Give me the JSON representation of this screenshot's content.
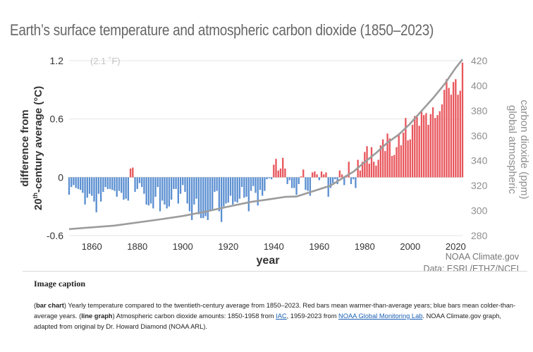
{
  "page": {
    "title": "Earth’s surface temperature and atmospheric carbon dioxide (1850–2023)",
    "caption_heading": "Image caption",
    "caption": {
      "bold": "bar chart",
      "part1": ") Yearly temperature compared to the twentieth-century average from 1850–2023. Red bars mean warmer-than-average years; blue bars mean colder-than-average years. (",
      "bold2": "line graph",
      "part2": ") Atmospheric carbon dioxide amounts: 1850-1958 from ",
      "link1": "IAC",
      "part3": ", 1959-2023 from ",
      "link2": "NOAA Global Monitoring Lab",
      "part4": ". NOAA Climate.gov graph, adapted from original by Dr. Howard Diamond (NOAA ARL)."
    }
  },
  "chart_data": {
    "type": "bar",
    "title": "Earth’s surface temperature and atmospheric carbon dioxide (1850–2023)",
    "xlabel": "year",
    "ylabel_left_line1": "difference from",
    "ylabel_left_line2a": "20",
    "ylabel_left_line2sup": "th",
    "ylabel_left_line2b": "-century average (°C)",
    "ylabel_right_line1": "global atmospheric",
    "ylabel_right_line2": "carbon dioxide (ppm)",
    "annotation": "(2.1 ˚F)",
    "credit": "NOAA Climate.gov",
    "source": "Data: ESRL/ETHZ/NCEI",
    "xlim": [
      1850,
      2023
    ],
    "ylim_left": [
      -0.6,
      1.2
    ],
    "ylim_right": [
      280,
      420
    ],
    "xticks": [
      1860,
      1880,
      1900,
      1920,
      1940,
      1960,
      1980,
      2000,
      2020
    ],
    "yticks_left": [
      {
        "v": -0.6,
        "l": "-0.6"
      },
      {
        "v": 0,
        "l": "0"
      },
      {
        "v": 0.6,
        "l": "0.6"
      },
      {
        "v": 1.2,
        "l": "1.2"
      }
    ],
    "yticks_right": [
      280,
      300,
      320,
      340,
      360,
      380,
      400,
      420
    ],
    "colors": {
      "warm": "#e8565c",
      "cold": "#5b8fd1",
      "co2": "#9c9c9c",
      "axis_text": "#333333",
      "right_text": "#8f8f8f"
    },
    "series": [
      {
        "name": "temperature anomaly (°C)",
        "x": [
          1850,
          1851,
          1852,
          1853,
          1854,
          1855,
          1856,
          1857,
          1858,
          1859,
          1860,
          1861,
          1862,
          1863,
          1864,
          1865,
          1866,
          1867,
          1868,
          1869,
          1870,
          1871,
          1872,
          1873,
          1874,
          1875,
          1876,
          1877,
          1878,
          1879,
          1880,
          1881,
          1882,
          1883,
          1884,
          1885,
          1886,
          1887,
          1888,
          1889,
          1890,
          1891,
          1892,
          1893,
          1894,
          1895,
          1896,
          1897,
          1898,
          1899,
          1900,
          1901,
          1902,
          1903,
          1904,
          1905,
          1906,
          1907,
          1908,
          1909,
          1910,
          1911,
          1912,
          1913,
          1914,
          1915,
          1916,
          1917,
          1918,
          1919,
          1920,
          1921,
          1922,
          1923,
          1924,
          1925,
          1926,
          1927,
          1928,
          1929,
          1930,
          1931,
          1932,
          1933,
          1934,
          1935,
          1936,
          1937,
          1938,
          1939,
          1940,
          1941,
          1942,
          1943,
          1944,
          1945,
          1946,
          1947,
          1948,
          1949,
          1950,
          1951,
          1952,
          1953,
          1954,
          1955,
          1956,
          1957,
          1958,
          1959,
          1960,
          1961,
          1962,
          1963,
          1964,
          1965,
          1966,
          1967,
          1968,
          1969,
          1970,
          1971,
          1972,
          1973,
          1974,
          1975,
          1976,
          1977,
          1978,
          1979,
          1980,
          1981,
          1982,
          1983,
          1984,
          1985,
          1986,
          1987,
          1988,
          1989,
          1990,
          1991,
          1992,
          1993,
          1994,
          1995,
          1996,
          1997,
          1998,
          1999,
          2000,
          2001,
          2002,
          2003,
          2004,
          2005,
          2006,
          2007,
          2008,
          2009,
          2010,
          2011,
          2012,
          2013,
          2014,
          2015,
          2016,
          2017,
          2018,
          2019,
          2020,
          2021,
          2022,
          2023
        ],
        "values": [
          -0.18,
          -0.1,
          -0.08,
          -0.11,
          -0.12,
          -0.13,
          -0.16,
          -0.28,
          -0.21,
          -0.17,
          -0.19,
          -0.25,
          -0.36,
          -0.17,
          -0.25,
          -0.15,
          -0.1,
          -0.12,
          -0.12,
          -0.13,
          -0.14,
          -0.2,
          -0.14,
          -0.16,
          -0.23,
          -0.22,
          -0.24,
          0.09,
          0.1,
          -0.15,
          -0.12,
          -0.06,
          -0.1,
          -0.17,
          -0.28,
          -0.29,
          -0.27,
          -0.32,
          -0.2,
          -0.1,
          -0.35,
          -0.24,
          -0.28,
          -0.32,
          -0.3,
          -0.23,
          -0.12,
          -0.12,
          -0.27,
          -0.17,
          -0.08,
          -0.15,
          -0.27,
          -0.35,
          -0.44,
          -0.28,
          -0.22,
          -0.38,
          -0.42,
          -0.42,
          -0.4,
          -0.44,
          -0.34,
          -0.33,
          -0.15,
          -0.14,
          -0.35,
          -0.46,
          -0.3,
          -0.27,
          -0.26,
          -0.19,
          -0.28,
          -0.25,
          -0.26,
          -0.22,
          -0.1,
          -0.21,
          -0.2,
          -0.35,
          -0.14,
          -0.09,
          -0.16,
          -0.29,
          -0.13,
          -0.19,
          -0.14,
          -0.02,
          -0.01,
          -0.02,
          0.13,
          0.19,
          0.07,
          0.09,
          0.2,
          0.09,
          -0.07,
          -0.03,
          -0.11,
          -0.11,
          -0.18,
          -0.07,
          0.01,
          0.08,
          -0.13,
          -0.14,
          -0.19,
          0.05,
          0.06,
          0.03,
          -0.03,
          0.06,
          0.03,
          0.05,
          -0.2,
          -0.11,
          -0.06,
          -0.02,
          -0.07,
          0.07,
          0.03,
          -0.08,
          0.01,
          0.16,
          -0.07,
          -0.02,
          -0.11,
          0.18,
          0.07,
          0.16,
          0.26,
          0.32,
          0.14,
          0.31,
          0.16,
          0.12,
          0.18,
          0.33,
          0.39,
          0.27,
          0.45,
          0.4,
          0.22,
          0.23,
          0.31,
          0.45,
          0.33,
          0.46,
          0.61,
          0.38,
          0.39,
          0.54,
          0.63,
          0.62,
          0.53,
          0.68,
          0.64,
          0.66,
          0.54,
          0.65,
          0.72,
          0.61,
          0.64,
          0.68,
          0.75,
          0.9,
          1.01,
          0.92,
          0.85,
          0.98,
          1.01,
          0.85,
          0.89,
          1.18
        ]
      },
      {
        "name": "CO2 (ppm)",
        "x": [
          1850,
          1870,
          1890,
          1900,
          1910,
          1920,
          1930,
          1938,
          1945,
          1950,
          1958,
          1965,
          1970,
          1975,
          1980,
          1985,
          1990,
          1995,
          2000,
          2005,
          2010,
          2015,
          2020,
          2023
        ],
        "values": [
          285.2,
          288.0,
          293.0,
          295.7,
          299.2,
          303.2,
          307.0,
          309.0,
          311.0,
          311.3,
          315.9,
          320.0,
          325.7,
          331.1,
          338.8,
          346.1,
          354.4,
          360.9,
          369.6,
          379.8,
          389.9,
          401.0,
          414.2,
          421.0
        ]
      }
    ]
  }
}
